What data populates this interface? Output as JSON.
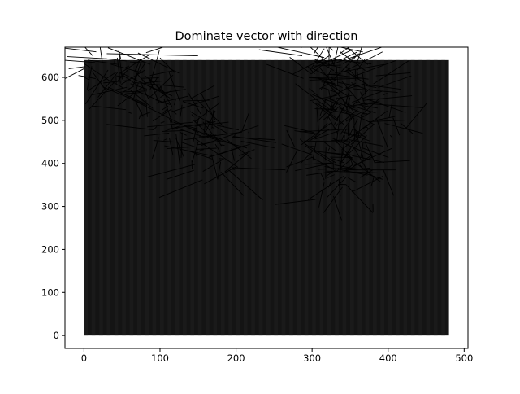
{
  "chart_data": {
    "type": "quiver",
    "title": "Dominate vector with direction",
    "xlabel": "",
    "ylabel": "",
    "xlim": [
      -25,
      505
    ],
    "ylim": [
      -30,
      670
    ],
    "x_ticks": [
      0,
      100,
      200,
      300,
      400,
      500
    ],
    "y_ticks": [
      0,
      100,
      200,
      300,
      400,
      500,
      600
    ],
    "grid": false,
    "legend": "none",
    "background_image": {
      "extent": {
        "x": [
          0,
          480
        ],
        "y": [
          0,
          640
        ]
      },
      "color": "#141414",
      "stripe_color": "#1e1e1e",
      "stripe_period": 10
    },
    "vector_color": "#000000",
    "clusters": [
      {
        "name": "",
        "path": [
          [
            35,
            645
          ],
          [
            80,
            560
          ],
          [
            135,
            480
          ],
          [
            185,
            400
          ]
        ],
        "points_per_segment": 55,
        "spread": 24,
        "length_mean": 40,
        "length_sd": 22
      },
      {
        "name": "",
        "path": [
          [
            310,
            650
          ],
          [
            340,
            600
          ],
          [
            355,
            540
          ],
          [
            345,
            480
          ],
          [
            330,
            420
          ],
          [
            345,
            360
          ]
        ],
        "points_per_segment": 45,
        "spread": 26,
        "length_mean": 38,
        "length_sd": 20
      }
    ],
    "extra_vectors": [
      {
        "x": 0,
        "y": 620,
        "dx": -35,
        "dy": -32
      },
      {
        "x": 2,
        "y": 625,
        "dx": -22,
        "dy": -5
      },
      {
        "x": 5,
        "y": 640,
        "dx": 40,
        "dy": -10
      },
      {
        "x": 190,
        "y": 385,
        "dx": 45,
        "dy": -70
      },
      {
        "x": 195,
        "y": 390,
        "dx": 70,
        "dy": -5
      },
      {
        "x": 180,
        "y": 380,
        "dx": 30,
        "dy": -55
      },
      {
        "x": 120,
        "y": 610,
        "dx": -20,
        "dy": 35
      },
      {
        "x": 30,
        "y": 655,
        "dx": 120,
        "dy": -5
      },
      {
        "x": 350,
        "y": 385,
        "dx": 60,
        "dy": 0
      },
      {
        "x": 355,
        "y": 395,
        "dx": 50,
        "dy": 40
      },
      {
        "x": 340,
        "y": 345,
        "dx": -25,
        "dy": -60
      },
      {
        "x": 345,
        "y": 350,
        "dx": 35,
        "dy": -65
      },
      {
        "x": 330,
        "y": 610,
        "dx": 65,
        "dy": 20
      },
      {
        "x": 325,
        "y": 630,
        "dx": 75,
        "dy": 45
      },
      {
        "x": 300,
        "y": 420,
        "dx": -40,
        "dy": 25
      }
    ]
  }
}
